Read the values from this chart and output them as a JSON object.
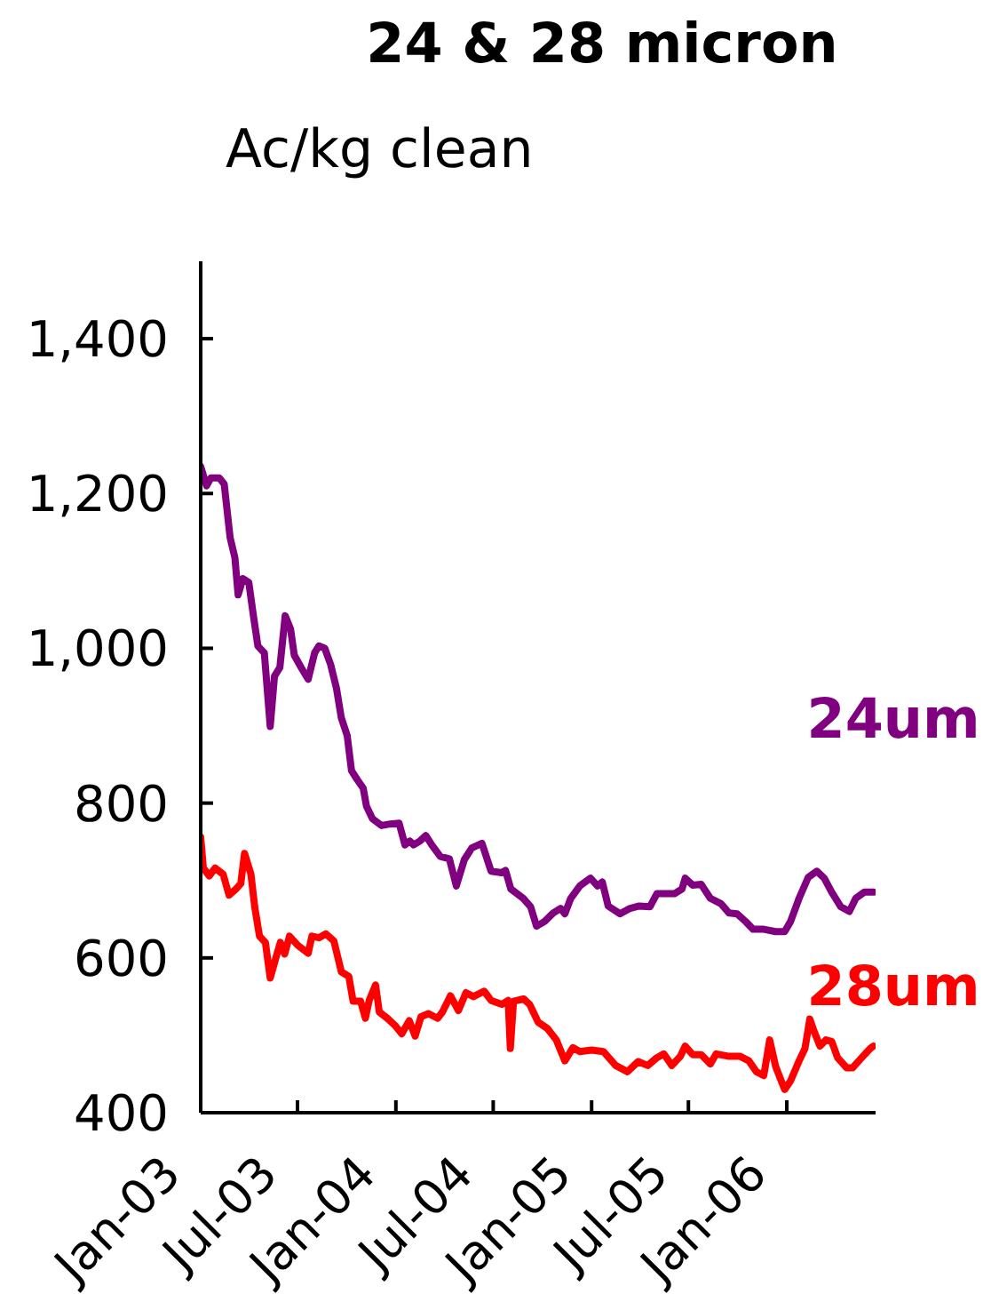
{
  "chart_data": {
    "type": "line",
    "title": "24 & 28 micron",
    "ylabel": "Ac/kg clean",
    "xlim": [
      "2003-01-01",
      "2006-06-16"
    ],
    "xticks": [
      {
        "value": "2003-01-01",
        "label": "Jan-03"
      },
      {
        "value": "2003-07-01",
        "label": "Jul-03"
      },
      {
        "value": "2004-01-01",
        "label": "Jan-04"
      },
      {
        "value": "2004-07-01",
        "label": "Jul-04"
      },
      {
        "value": "2005-01-01",
        "label": "Jan-05"
      },
      {
        "value": "2005-07-01",
        "label": "Jul-05"
      },
      {
        "value": "2006-01-01",
        "label": "Jan-06"
      }
    ],
    "ylim": [
      400,
      1500
    ],
    "yticks": [
      400,
      600,
      800,
      {
        "value": 1000,
        "label": "1,000"
      },
      {
        "value": 1200,
        "label": "1,200"
      },
      {
        "value": 1400,
        "label": "1,400"
      }
    ],
    "marker": "none",
    "line_style": "solid",
    "series": [
      {
        "name": "24um",
        "color": "#800080",
        "x": [
          "2003-01-01",
          "2003-01-12",
          "2003-01-20",
          "2003-02-05",
          "2003-02-14",
          "2003-02-25",
          "2003-03-06",
          "2003-03-12",
          "2003-03-21",
          "2003-04-01",
          "2003-04-10",
          "2003-04-18",
          "2003-04-30",
          "2003-05-11",
          "2003-05-19",
          "2003-05-29",
          "2003-06-08",
          "2003-06-18",
          "2003-06-25",
          "2003-07-08",
          "2003-07-21",
          "2003-08-02",
          "2003-08-10",
          "2003-08-21",
          "2003-09-01",
          "2003-09-12",
          "2003-09-21",
          "2003-10-02",
          "2003-10-10",
          "2003-10-21",
          "2003-11-01",
          "2003-11-07",
          "2003-11-18",
          "2003-12-05",
          "2003-12-21",
          "2004-01-07",
          "2004-01-18",
          "2004-01-27",
          "2004-02-03",
          "2004-02-15",
          "2004-02-26",
          "2004-03-08",
          "2004-03-24",
          "2004-04-10",
          "2004-04-23",
          "2004-05-08",
          "2004-05-22",
          "2004-06-10",
          "2004-06-27",
          "2004-07-17",
          "2004-07-24",
          "2004-08-03",
          "2004-08-26",
          "2004-09-09",
          "2004-09-20",
          "2004-10-05",
          "2004-10-21",
          "2004-11-04",
          "2004-11-12",
          "2004-11-23",
          "2004-12-10",
          "2004-12-30",
          "2005-01-12",
          "2005-01-21",
          "2005-02-01",
          "2005-02-23",
          "2005-03-14",
          "2005-03-31",
          "2005-04-20",
          "2005-05-03",
          "2005-05-20",
          "2005-06-05",
          "2005-06-19",
          "2005-06-25",
          "2005-07-09",
          "2005-07-25",
          "2005-08-11",
          "2005-08-31",
          "2005-09-15",
          "2005-09-30",
          "2005-10-16",
          "2005-10-30",
          "2005-11-19",
          "2005-12-11",
          "2005-12-28",
          "2006-01-08",
          "2006-01-24",
          "2006-02-10",
          "2006-02-26",
          "2006-03-12",
          "2006-03-26",
          "2006-04-12",
          "2006-04-28",
          "2006-05-10",
          "2006-05-26",
          "2006-06-12"
        ],
        "values": [
          1235,
          1210,
          1220,
          1220,
          1212,
          1143,
          1117,
          1069,
          1090,
          1085,
          1040,
          1003,
          994,
          899,
          964,
          975,
          1042,
          1025,
          991,
          975,
          960,
          994,
          1003,
          1000,
          979,
          948,
          910,
          887,
          842,
          830,
          819,
          796,
          780,
          771,
          773,
          774,
          746,
          751,
          746,
          751,
          758,
          746,
          731,
          728,
          693,
          727,
          742,
          748,
          712,
          710,
          713,
          689,
          677,
          666,
          641,
          647,
          658,
          664,
          657,
          677,
          693,
          703,
          693,
          698,
          667,
          657,
          664,
          667,
          666,
          683,
          683,
          683,
          689,
          703,
          694,
          695,
          677,
          670,
          658,
          657,
          647,
          637,
          637,
          634,
          634,
          647,
          677,
          704,
          712,
          703,
          685,
          666,
          660,
          677,
          685,
          685
        ]
      },
      {
        "name": "28um",
        "color": "#ff0000",
        "x": [
          "2003-01-01",
          "2003-01-06",
          "2003-01-17",
          "2003-01-28",
          "2003-02-12",
          "2003-02-23",
          "2003-03-08",
          "2003-03-17",
          "2003-03-24",
          "2003-04-05",
          "2003-04-12",
          "2003-04-21",
          "2003-05-02",
          "2003-05-11",
          "2003-05-22",
          "2003-05-30",
          "2003-06-07",
          "2003-06-16",
          "2003-07-02",
          "2003-07-21",
          "2003-07-28",
          "2003-08-10",
          "2003-08-23",
          "2003-09-07",
          "2003-09-21",
          "2003-10-05",
          "2003-10-13",
          "2003-10-27",
          "2003-11-05",
          "2003-11-12",
          "2003-11-24",
          "2003-12-01",
          "2003-12-16",
          "2003-12-30",
          "2004-01-12",
          "2004-01-26",
          "2004-02-06",
          "2004-02-17",
          "2004-03-02",
          "2004-03-19",
          "2004-03-28",
          "2004-04-12",
          "2004-04-27",
          "2004-05-11",
          "2004-05-25",
          "2004-06-14",
          "2004-06-27",
          "2004-07-17",
          "2004-07-29",
          "2004-08-02",
          "2004-08-08",
          "2004-08-27",
          "2004-09-07",
          "2004-09-23",
          "2004-10-10",
          "2004-10-27",
          "2004-11-12",
          "2004-11-27",
          "2004-12-10",
          "2005-01-01",
          "2005-01-23",
          "2005-02-15",
          "2005-03-09",
          "2005-03-29",
          "2005-04-16",
          "2005-05-03",
          "2005-05-16",
          "2005-05-31",
          "2005-06-16",
          "2005-06-25",
          "2005-07-09",
          "2005-07-25",
          "2005-08-11",
          "2005-08-22",
          "2005-09-13",
          "2005-10-05",
          "2005-10-22",
          "2005-11-05",
          "2005-11-19",
          "2005-11-30",
          "2005-12-11",
          "2005-12-20",
          "2005-12-28",
          "2006-01-08",
          "2006-01-24",
          "2006-02-04",
          "2006-02-13",
          "2006-02-21",
          "2006-03-04",
          "2006-03-15",
          "2006-03-26",
          "2006-04-06",
          "2006-04-23",
          "2006-05-04",
          "2006-05-21",
          "2006-06-06",
          "2006-06-12"
        ],
        "values": [
          756,
          716,
          706,
          716,
          708,
          681,
          689,
          696,
          735,
          708,
          666,
          628,
          620,
          574,
          601,
          620,
          605,
          628,
          616,
          606,
          628,
          626,
          631,
          622,
          582,
          576,
          544,
          544,
          522,
          545,
          565,
          530,
          522,
          513,
          502,
          519,
          499,
          524,
          528,
          522,
          530,
          551,
          532,
          555,
          550,
          557,
          545,
          540,
          545,
          483,
          544,
          547,
          540,
          517,
          509,
          494,
          467,
          484,
          479,
          481,
          479,
          461,
          453,
          466,
          461,
          471,
          476,
          461,
          473,
          486,
          475,
          475,
          463,
          476,
          473,
          473,
          467,
          453,
          448,
          494,
          460,
          444,
          430,
          441,
          467,
          483,
          521,
          505,
          486,
          494,
          492,
          471,
          458,
          458,
          471,
          483,
          486
        ]
      }
    ]
  }
}
